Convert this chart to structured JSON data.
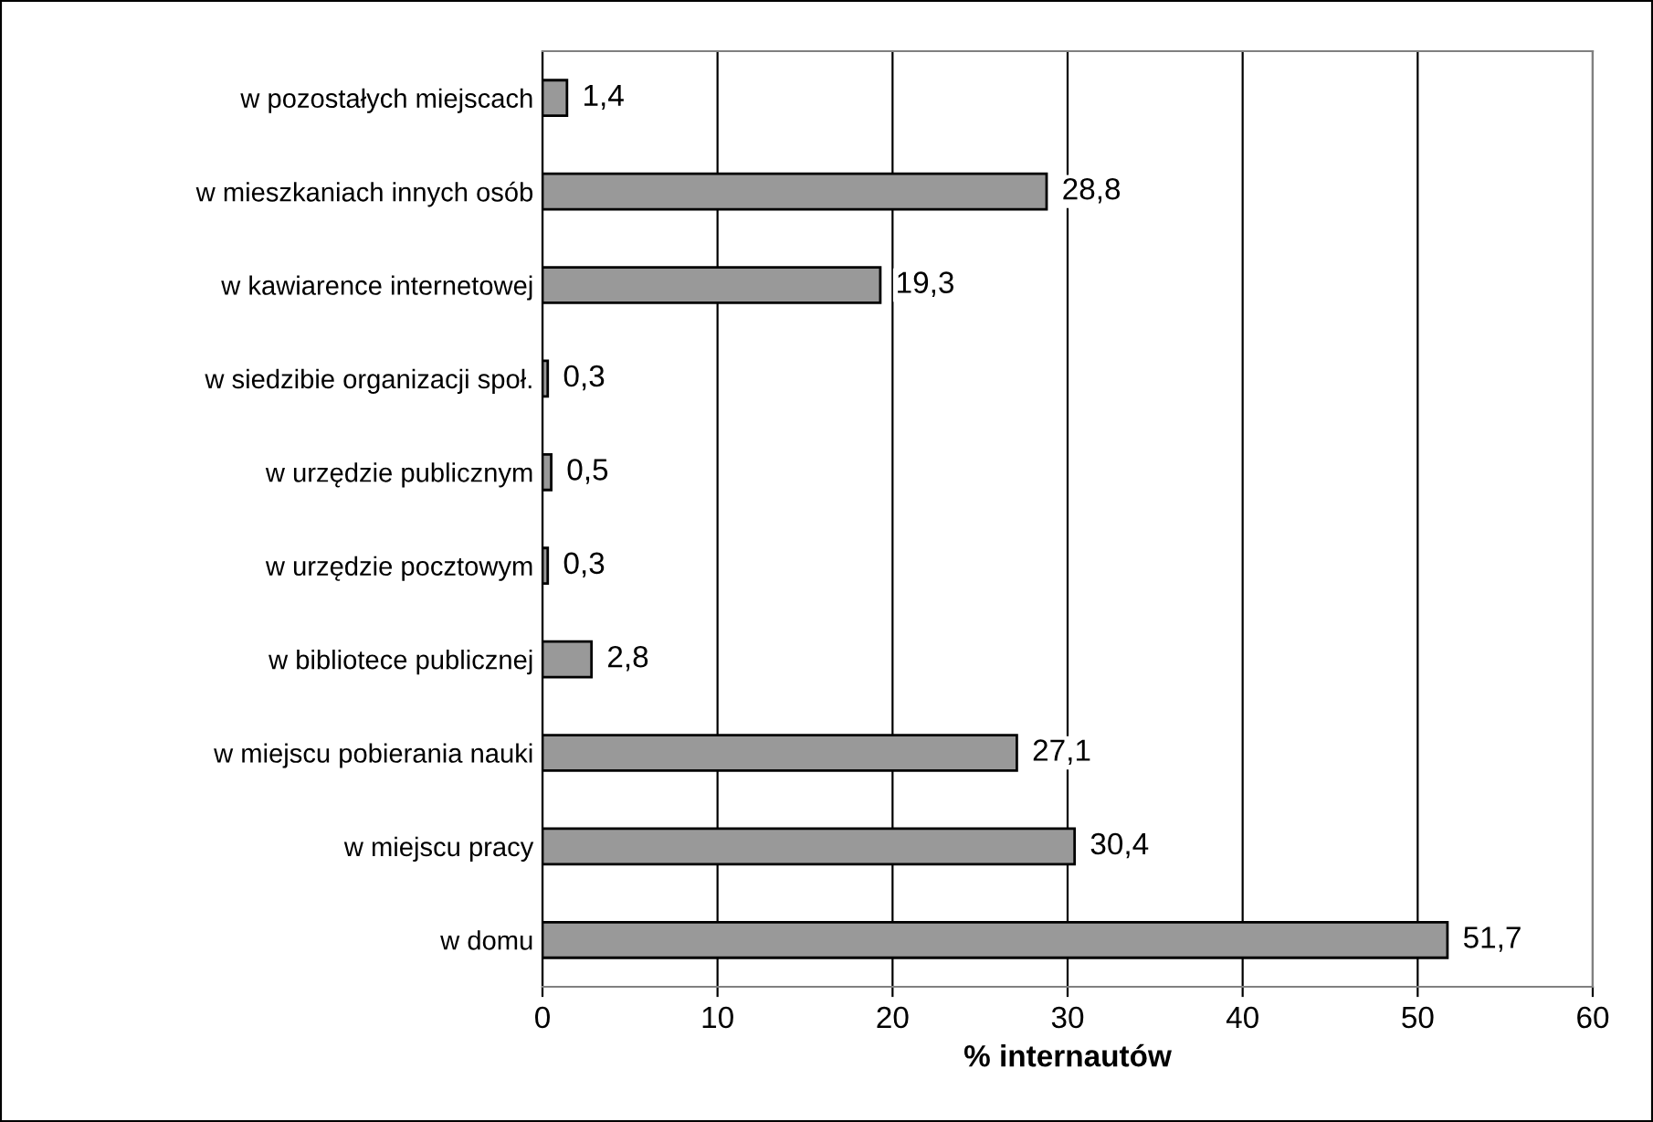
{
  "chart_data": {
    "type": "bar",
    "orientation": "horizontal",
    "xlabel": "% internautów",
    "categories": [
      "w pozostałych miejscach",
      "w mieszkaniach innych osób",
      "w kawiarence internetowej",
      "w siedzibie organizacji społ.",
      "w urzędzie publicznym",
      "w urzędzie pocztowym",
      "w bibliotece publicznej",
      "w miejscu pobierania nauki",
      "w miejscu pracy",
      "w domu"
    ],
    "values": [
      1.4,
      28.8,
      19.3,
      0.3,
      0.5,
      0.3,
      2.8,
      27.1,
      30.4,
      51.7
    ],
    "value_labels": [
      "1,4",
      "28,8",
      "19,3",
      "0,3",
      "0,5",
      "0,3",
      "2,8",
      "27,1",
      "30,4",
      "51,7"
    ],
    "color": "#999999",
    "xlim": [
      0,
      60
    ],
    "xticks": [
      0,
      10,
      20,
      30,
      40,
      50,
      60
    ],
    "grid": "x"
  }
}
